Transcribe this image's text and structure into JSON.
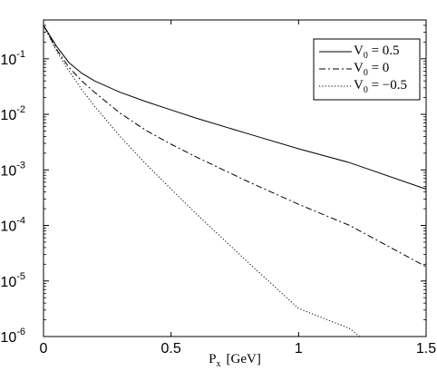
{
  "chart_data": {
    "type": "line",
    "xlabel": "P",
    "xlabel_sub": "x",
    "xlabel_unit": "[GeV]",
    "ylabel": "",
    "xlim": [
      0,
      1.5
    ],
    "ylim": [
      1e-06,
      0.5
    ],
    "yscale": "log",
    "grid": false,
    "legend_position": "top-right",
    "x_ticks": [
      {
        "value": 0,
        "label": "0"
      },
      {
        "value": 0.5,
        "label": "0.5"
      },
      {
        "value": 1,
        "label": "1"
      },
      {
        "value": 1.5,
        "label": "1.5"
      }
    ],
    "y_ticks": [
      {
        "value": 0.1,
        "base": "10",
        "exp": "-1"
      },
      {
        "value": 0.01,
        "base": "10",
        "exp": "-2"
      },
      {
        "value": 0.001,
        "base": "10",
        "exp": "-3"
      },
      {
        "value": 0.0001,
        "base": "10",
        "exp": "-4"
      },
      {
        "value": 1e-05,
        "base": "10",
        "exp": "-5"
      },
      {
        "value": 1e-06,
        "base": "10",
        "exp": "-6"
      }
    ],
    "series": [
      {
        "name": "V",
        "name_sub": "0",
        "name_value": " = 0.5",
        "dash": "solid",
        "color": "#000000",
        "x": [
          0,
          0.05,
          0.1,
          0.15,
          0.2,
          0.3,
          0.4,
          0.5,
          0.6,
          0.8,
          1.0,
          1.2,
          1.5
        ],
        "y": [
          0.4,
          0.17,
          0.085,
          0.055,
          0.04,
          0.025,
          0.017,
          0.012,
          0.0085,
          0.0045,
          0.0024,
          0.00135,
          0.00045
        ]
      },
      {
        "name": "V",
        "name_sub": "0",
        "name_value": " = 0",
        "dash": "dashdot",
        "color": "#000000",
        "x": [
          0,
          0.05,
          0.1,
          0.15,
          0.2,
          0.3,
          0.4,
          0.5,
          0.6,
          0.8,
          1.0,
          1.2,
          1.5
        ],
        "y": [
          0.4,
          0.15,
          0.07,
          0.04,
          0.025,
          0.0105,
          0.0052,
          0.0029,
          0.0017,
          0.00062,
          0.00024,
          0.0001,
          1.8e-05
        ]
      },
      {
        "name": "V",
        "name_sub": "0",
        "name_value": " = −0.5",
        "dash": "dotted",
        "color": "#000000",
        "x": [
          0,
          0.05,
          0.1,
          0.15,
          0.2,
          0.3,
          0.4,
          0.5,
          0.6,
          0.8,
          1.0,
          1.2,
          1.24
        ],
        "y": [
          0.4,
          0.14,
          0.06,
          0.028,
          0.014,
          0.004,
          0.0013,
          0.00045,
          0.00016,
          2.2e-05,
          3.2e-06,
          1.4e-06,
          1e-06
        ]
      }
    ]
  }
}
